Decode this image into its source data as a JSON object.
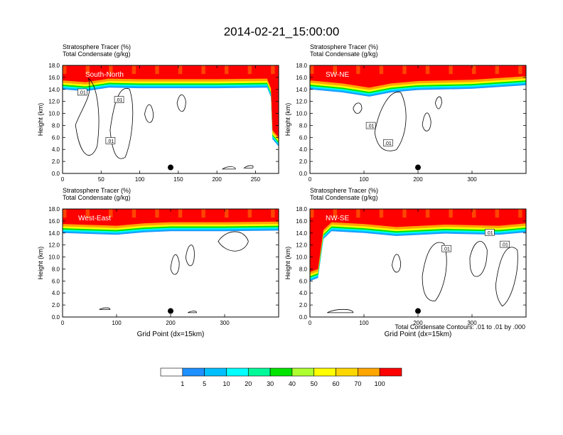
{
  "figure": {
    "title": "2014-02-21_15:00:00",
    "footnote": "Total Condensate Contours: .01 to .01 by .000"
  },
  "colorbar": {
    "labels": [
      "1",
      "5",
      "10",
      "20",
      "30",
      "40",
      "50",
      "60",
      "70",
      "100"
    ],
    "colors": [
      "#ffffff",
      "#1e90ff",
      "#00bfff",
      "#00ffff",
      "#00fa9a",
      "#00e400",
      "#adff2f",
      "#ffff00",
      "#ffd700",
      "#ffa500",
      "#ff4500",
      "#ff0000"
    ]
  },
  "contour_label": ".01",
  "chart_data": [
    {
      "type": "heatmap",
      "panel": "South-North",
      "title_line1": "Stratosphere Tracer   (%)",
      "title_line2": "Total Condensate   (g/kg)",
      "ylabel": "Height (km)",
      "xlabel": "",
      "xlim": [
        0,
        280
      ],
      "ylim": [
        0,
        18
      ],
      "xticks": [
        0,
        50,
        100,
        150,
        200,
        250
      ],
      "yticks": [
        "0.0",
        "2.0",
        "4.0",
        "6.0",
        "8.0",
        "10.0",
        "12.0",
        "14.0",
        "16.0",
        "18.0"
      ],
      "tropopause_km": [
        [
          0,
          15.5
        ],
        [
          30,
          15.2
        ],
        [
          60,
          15.8
        ],
        [
          100,
          15.7
        ],
        [
          150,
          15.7
        ],
        [
          200,
          15.7
        ],
        [
          265,
          15.8
        ],
        [
          270,
          14.2
        ],
        [
          272,
          7.2
        ],
        [
          280,
          6.0
        ]
      ],
      "marker_x": 140
    },
    {
      "type": "heatmap",
      "panel": "SW-NE",
      "title_line1": "Stratosphere Tracer   (%)",
      "title_line2": "Total Condensate   (g/kg)",
      "ylabel": "Height (km)",
      "xlabel": "",
      "xlim": [
        0,
        400
      ],
      "ylim": [
        0,
        18
      ],
      "xticks": [
        0,
        100,
        200,
        300
      ],
      "yticks": [
        "0.0",
        "2.0",
        "4.0",
        "6.0",
        "8.0",
        "10.0",
        "12.0",
        "14.0",
        "16.0",
        "18.0"
      ],
      "tropopause_km": [
        [
          0,
          15.5
        ],
        [
          60,
          15.0
        ],
        [
          110,
          14.3
        ],
        [
          150,
          15.0
        ],
        [
          200,
          15.4
        ],
        [
          300,
          15.6
        ],
        [
          400,
          16.2
        ]
      ],
      "marker_x": 200
    },
    {
      "type": "heatmap",
      "panel": "West-East",
      "title_line1": "Stratosphere Tracer   (%)",
      "title_line2": "Total Condensate   (g/kg)",
      "ylabel": "Height (km)",
      "xlabel": "Grid Point (dx=15km)",
      "xlim": [
        0,
        400
      ],
      "ylim": [
        0,
        18
      ],
      "xticks": [
        0,
        100,
        200,
        300
      ],
      "yticks": [
        "0.0",
        "2.0",
        "4.0",
        "6.0",
        "8.0",
        "10.0",
        "12.0",
        "14.0",
        "16.0",
        "18.0"
      ],
      "tropopause_km": [
        [
          0,
          15.5
        ],
        [
          100,
          15.2
        ],
        [
          150,
          15.6
        ],
        [
          200,
          15.8
        ],
        [
          300,
          15.8
        ],
        [
          400,
          15.9
        ]
      ],
      "marker_x": 200
    },
    {
      "type": "heatmap",
      "panel": "NW-SE",
      "title_line1": "Stratosphere Tracer   (%)",
      "title_line2": "Total Condensate   (g/kg)",
      "ylabel": "Height (km)",
      "xlabel": "Grid Point (dx=15km)",
      "xlim": [
        0,
        400
      ],
      "ylim": [
        0,
        18
      ],
      "xticks": [
        0,
        100,
        200,
        300
      ],
      "yticks": [
        "0.0",
        "2.0",
        "4.0",
        "6.0",
        "8.0",
        "10.0",
        "12.0",
        "14.0",
        "16.0",
        "18.0"
      ],
      "tropopause_km": [
        [
          0,
          7.5
        ],
        [
          15,
          8.0
        ],
        [
          25,
          14.5
        ],
        [
          40,
          15.8
        ],
        [
          100,
          15.5
        ],
        [
          160,
          15.0
        ],
        [
          250,
          15.4
        ],
        [
          350,
          15.2
        ],
        [
          400,
          15.6
        ]
      ],
      "marker_x": 200
    }
  ]
}
